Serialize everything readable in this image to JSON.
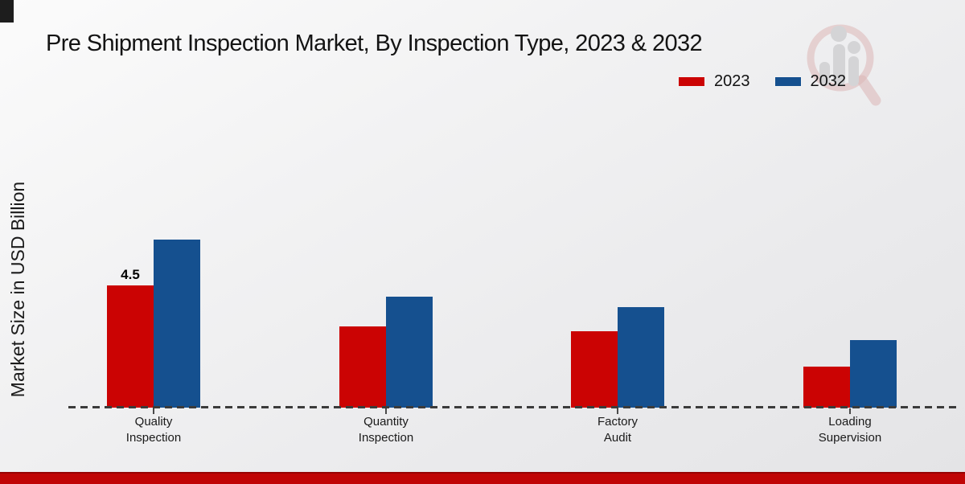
{
  "title": "Pre Shipment Inspection Market, By Inspection Type, 2023 & 2032",
  "y_axis_label": "Market Size in USD Billion",
  "legend": {
    "items": [
      {
        "label": "2023",
        "color": "#cb0303"
      },
      {
        "label": "2032",
        "color": "#15508f"
      }
    ]
  },
  "watermark": {
    "icon": "market-research-magnifier-logo"
  },
  "footer": {
    "accent_color": "#c00505"
  },
  "chart_data": {
    "type": "bar",
    "title": "Pre Shipment Inspection Market, By Inspection Type, 2023 & 2032",
    "xlabel": "",
    "ylabel": "Market Size in USD Billion",
    "ylim": [
      0,
      7
    ],
    "grid": false,
    "legend_position": "top-right",
    "baseline_style": "dashed",
    "categories": [
      "Quality\nInspection",
      "Quantity\nInspection",
      "Factory\nAudit",
      "Loading\nSupervision"
    ],
    "series": [
      {
        "name": "2023",
        "color": "#cb0303",
        "values": [
          4.5,
          3.0,
          2.8,
          1.5
        ]
      },
      {
        "name": "2032",
        "color": "#15508f",
        "values": [
          6.2,
          4.1,
          3.7,
          2.5
        ]
      }
    ],
    "bar_labels": [
      {
        "series_index": 0,
        "category_index": 0,
        "text": "4.5"
      }
    ]
  }
}
